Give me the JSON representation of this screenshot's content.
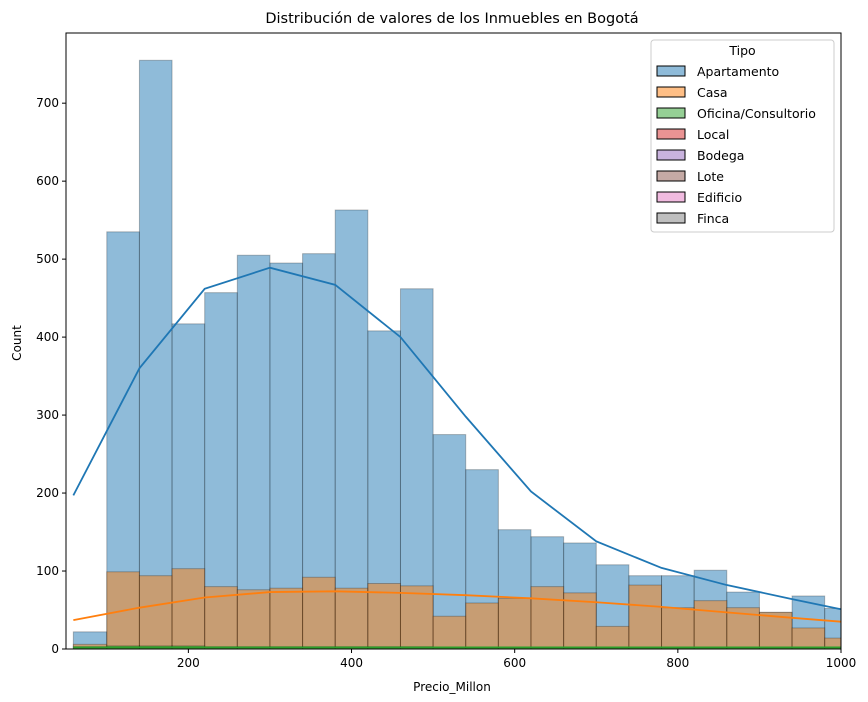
{
  "chart_data": {
    "type": "bar",
    "title": "Distribución de valores de los Inmuebles en Bogotá",
    "xlabel": "Precio_Millon",
    "ylabel": "Count",
    "xlim": [
      50,
      1000
    ],
    "ylim": [
      0,
      790
    ],
    "xticks": [
      200,
      400,
      600,
      800,
      1000
    ],
    "yticks": [
      0,
      100,
      200,
      300,
      400,
      500,
      600,
      700
    ],
    "grid": false,
    "legend": {
      "title": "Tipo",
      "placement": "top-right",
      "entries": [
        {
          "label": "Apartamento",
          "color": "#1f77b4"
        },
        {
          "label": "Casa",
          "color": "#ff7f0e"
        },
        {
          "label": "Oficina/Consultorio",
          "color": "#2ca02c"
        },
        {
          "label": "Local",
          "color": "#d62728"
        },
        {
          "label": "Bodega",
          "color": "#9467bd"
        },
        {
          "label": "Lote",
          "color": "#8c564b"
        },
        {
          "label": "Edificio",
          "color": "#e377c2"
        },
        {
          "label": "Finca",
          "color": "#7f7f7f"
        }
      ]
    },
    "bin_edges": [
      59,
      100,
      140,
      180,
      220,
      260,
      300,
      340,
      380,
      420,
      460,
      500,
      540,
      580,
      620,
      660,
      700,
      740,
      780,
      820,
      860,
      900,
      940,
      980,
      1000
    ],
    "series": [
      {
        "name": "Apartamento",
        "color": "#1f77b4",
        "values": [
          22,
          535,
          755,
          417,
          457,
          505,
          495,
          507,
          563,
          408,
          462,
          275,
          230,
          153,
          144,
          136,
          108,
          94,
          94,
          101,
          73,
          47,
          68,
          52
        ],
        "kde": {
          "x": [
            59,
            140,
            220,
            300,
            380,
            460,
            540,
            620,
            700,
            780,
            860,
            940,
            1000
          ],
          "y": [
            197,
            360,
            462,
            489,
            467,
            400,
            298,
            202,
            138,
            104,
            82,
            64,
            51
          ]
        }
      },
      {
        "name": "Casa",
        "color": "#ff7f0e",
        "values": [
          6,
          99,
          94,
          103,
          80,
          76,
          78,
          92,
          78,
          84,
          81,
          42,
          59,
          65,
          80,
          72,
          29,
          82,
          53,
          62,
          53,
          47,
          27,
          14
        ],
        "kde": {
          "x": [
            59,
            140,
            220,
            300,
            380,
            460,
            540,
            620,
            700,
            780,
            860,
            940,
            1000
          ],
          "y": [
            37,
            53,
            66,
            73,
            74,
            72,
            69,
            65,
            60,
            54,
            47,
            40,
            35
          ]
        }
      },
      {
        "name": "Oficina/Consultorio",
        "color": "#2ca02c",
        "values": [
          3,
          4,
          4,
          4,
          3,
          3,
          3,
          3,
          3,
          3,
          3,
          2,
          2,
          2,
          2,
          2,
          2,
          2,
          2,
          2,
          2,
          2,
          2,
          2
        ],
        "kde": {
          "x": [
            59,
            1000
          ],
          "y": [
            2,
            2
          ]
        }
      }
    ]
  }
}
